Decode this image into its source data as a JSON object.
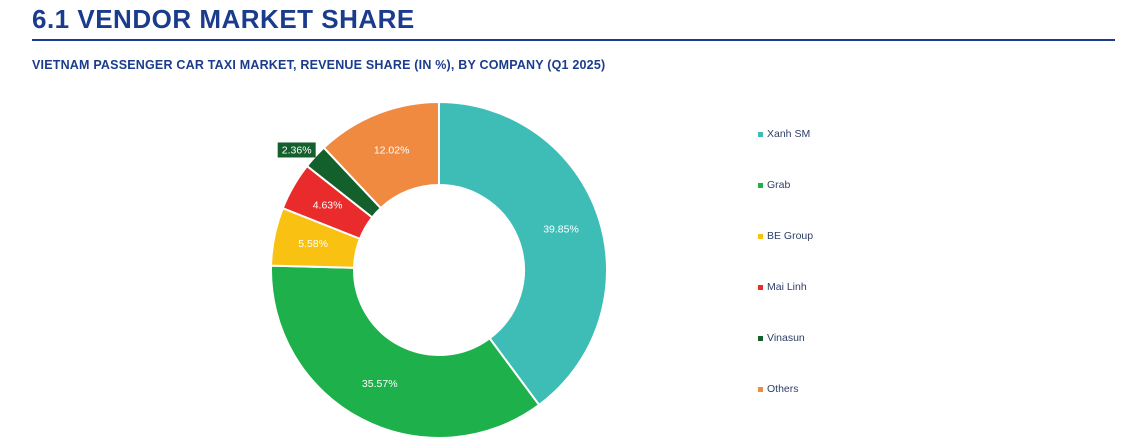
{
  "header": {
    "section_title": "6.1 VENDOR MARKET SHARE",
    "chart_subtitle": "VIETNAM PASSENGER CAR TAXI MARKET, REVENUE SHARE (IN %), BY COMPANY (Q1 2025)"
  },
  "chart_data": {
    "type": "pie",
    "variant": "donut",
    "title": "VIETNAM PASSENGER CAR TAXI MARKET, REVENUE SHARE (IN %), BY COMPANY (Q1 2025)",
    "unit": "%",
    "legend_position": "right",
    "slices": [
      {
        "name": "Xanh SM",
        "value": 39.85,
        "label": "39.85%",
        "color": "#3dbdb6"
      },
      {
        "name": "Grab",
        "value": 35.57,
        "label": "35.57%",
        "color": "#1db04b"
      },
      {
        "name": "BE Group",
        "value": 5.58,
        "label": "5.58%",
        "color": "#f9c111"
      },
      {
        "name": "Mai Linh",
        "value": 4.63,
        "label": "4.63%",
        "color": "#ea2b2b"
      },
      {
        "name": "Vinasun",
        "value": 2.36,
        "label": "2.36%",
        "color": "#13602d"
      },
      {
        "name": "Others",
        "value": 12.02,
        "label": "12.02%",
        "color": "#f08a40"
      }
    ]
  }
}
